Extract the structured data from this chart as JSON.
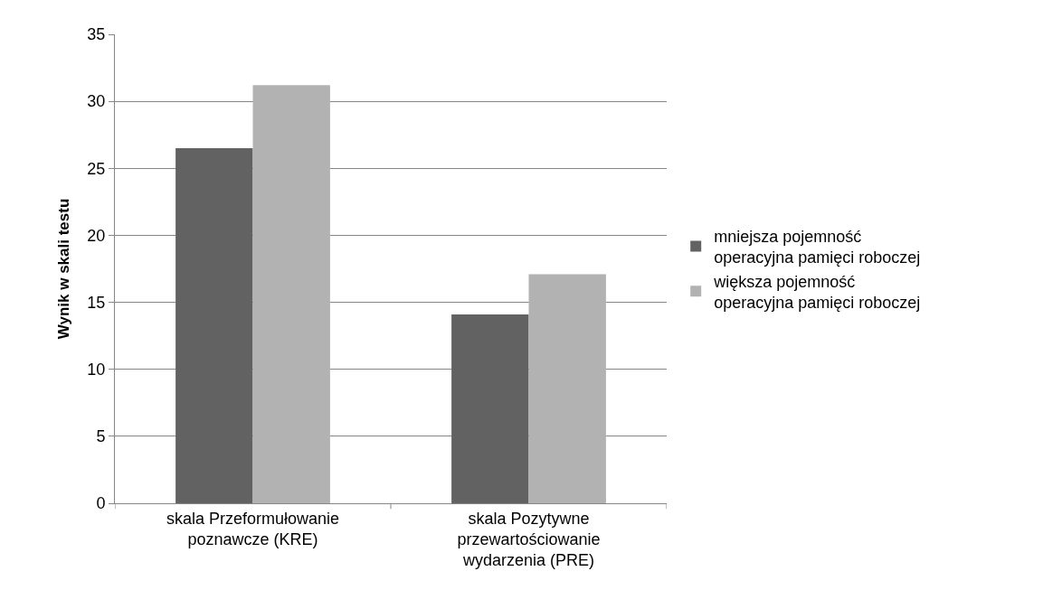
{
  "chart_data": {
    "type": "bar",
    "ylabel": "Wynik w skali testu",
    "categories": [
      "skala Przeformułowanie poznawcze (KRE)",
      "skala Pozytywne przewartościowanie wydarzenia (PRE)"
    ],
    "series": [
      {
        "name": "mniejsza pojemność operacyjna pamięci roboczej",
        "color": "#626262",
        "values": [
          26.5,
          14.1
        ]
      },
      {
        "name": "większa pojemność operacyjna pamięci roboczej",
        "color": "#b2b2b2",
        "values": [
          31.2,
          17.1
        ]
      }
    ],
    "ylim": [
      0,
      35
    ],
    "yticks": [
      0,
      5,
      10,
      15,
      20,
      25,
      30,
      35
    ],
    "grid": "y",
    "legend": "right"
  }
}
